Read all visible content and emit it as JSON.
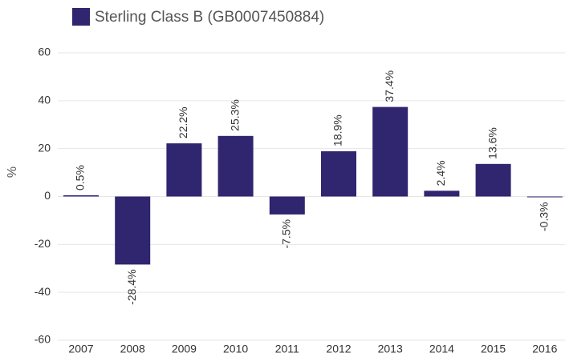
{
  "chart_data": {
    "type": "bar",
    "y_label": "%",
    "categories": [
      "2007",
      "2008",
      "2009",
      "2010",
      "2011",
      "2012",
      "2013",
      "2014",
      "2015",
      "2016"
    ],
    "series": [
      {
        "name": "Sterling Class B (GB0007450884)",
        "color": "#30256f",
        "values": [
          0.5,
          -28.4,
          22.2,
          25.3,
          -7.5,
          18.9,
          37.4,
          2.4,
          13.6,
          -0.3
        ],
        "value_labels": [
          "0.5%",
          "-28.4%",
          "22.2%",
          "25.3%",
          "-7.5%",
          "18.9%",
          "37.4%",
          "2.4%",
          "13.6%",
          "-0.3%"
        ]
      }
    ],
    "ylim": [
      -60,
      60
    ],
    "yticks": [
      -60,
      -40,
      -20,
      0,
      20,
      40,
      60
    ],
    "grid": true,
    "legend": "top"
  }
}
